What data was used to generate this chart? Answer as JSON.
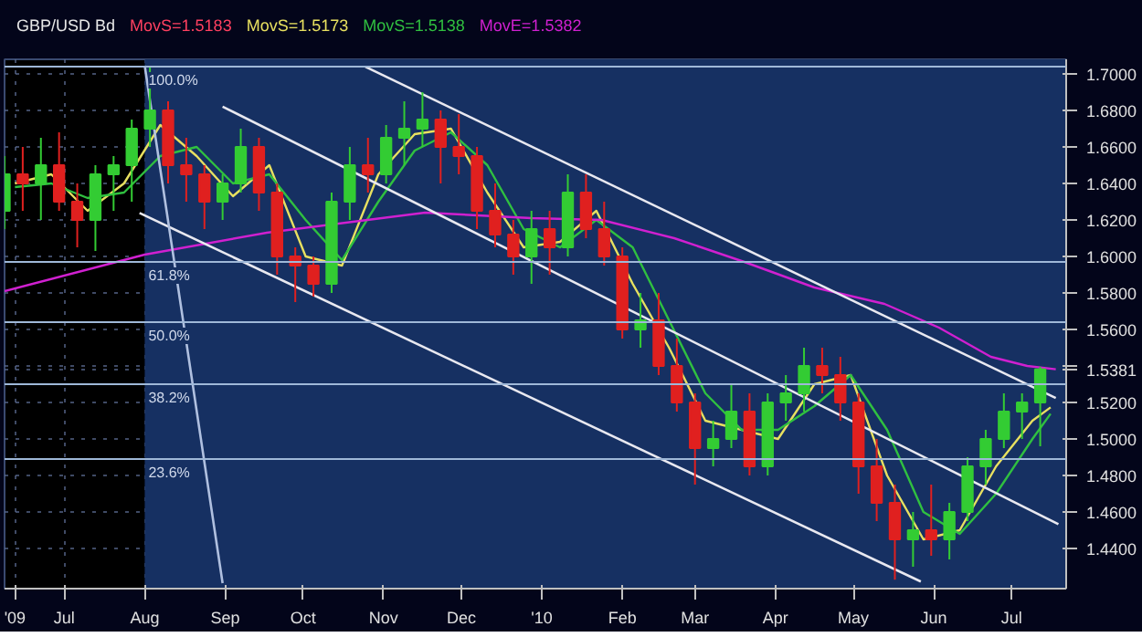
{
  "chart_data": {
    "type": "candlestick",
    "title": "GBP/USD Bd",
    "x": [
      "2009-06-08",
      "2009-06-15",
      "2009-06-22",
      "2009-06-29",
      "2009-07-06",
      "2009-07-13",
      "2009-07-20",
      "2009-07-27",
      "2009-08-03",
      "2009-08-10",
      "2009-08-17",
      "2009-08-24",
      "2009-08-31",
      "2009-09-07",
      "2009-09-14",
      "2009-09-21",
      "2009-09-28",
      "2009-10-05",
      "2009-10-12",
      "2009-10-19",
      "2009-10-26",
      "2009-11-02",
      "2009-11-09",
      "2009-11-16",
      "2009-11-23",
      "2009-11-30",
      "2009-12-07",
      "2009-12-14",
      "2009-12-21",
      "2009-12-28",
      "2010-01-04",
      "2010-01-11",
      "2010-01-18",
      "2010-01-25",
      "2010-02-01",
      "2010-02-08",
      "2010-02-15",
      "2010-02-22",
      "2010-03-01",
      "2010-03-08",
      "2010-03-15",
      "2010-03-22",
      "2010-03-29",
      "2010-04-05",
      "2010-04-12",
      "2010-04-19",
      "2010-04-26",
      "2010-05-03",
      "2010-05-10",
      "2010-05-17",
      "2010-05-24",
      "2010-05-31",
      "2010-06-07",
      "2010-06-14",
      "2010-06-21",
      "2010-06-28",
      "2010-07-05",
      "2010-07-12"
    ],
    "ohlc": [
      [
        1.625,
        1.655,
        1.615,
        1.645
      ],
      [
        1.645,
        1.66,
        1.625,
        1.64
      ],
      [
        1.64,
        1.665,
        1.62,
        1.65
      ],
      [
        1.65,
        1.668,
        1.625,
        1.63
      ],
      [
        1.63,
        1.64,
        1.605,
        1.62
      ],
      [
        1.62,
        1.65,
        1.603,
        1.645
      ],
      [
        1.645,
        1.655,
        1.625,
        1.65
      ],
      [
        1.65,
        1.675,
        1.63,
        1.67
      ],
      [
        1.67,
        1.7043,
        1.66,
        1.68
      ],
      [
        1.68,
        1.685,
        1.64,
        1.65
      ],
      [
        1.65,
        1.665,
        1.63,
        1.645
      ],
      [
        1.645,
        1.65,
        1.615,
        1.63
      ],
      [
        1.63,
        1.645,
        1.62,
        1.64
      ],
      [
        1.64,
        1.67,
        1.635,
        1.66
      ],
      [
        1.66,
        1.665,
        1.625,
        1.635
      ],
      [
        1.635,
        1.64,
        1.59,
        1.6
      ],
      [
        1.6,
        1.605,
        1.575,
        1.595
      ],
      [
        1.595,
        1.6,
        1.578,
        1.585
      ],
      [
        1.585,
        1.635,
        1.58,
        1.63
      ],
      [
        1.63,
        1.66,
        1.62,
        1.65
      ],
      [
        1.65,
        1.665,
        1.635,
        1.645
      ],
      [
        1.645,
        1.672,
        1.64,
        1.665
      ],
      [
        1.665,
        1.685,
        1.65,
        1.67
      ],
      [
        1.67,
        1.69,
        1.66,
        1.675
      ],
      [
        1.675,
        1.68,
        1.64,
        1.66
      ],
      [
        1.66,
        1.678,
        1.645,
        1.655
      ],
      [
        1.655,
        1.66,
        1.615,
        1.625
      ],
      [
        1.625,
        1.64,
        1.605,
        1.612
      ],
      [
        1.612,
        1.62,
        1.59,
        1.6
      ],
      [
        1.6,
        1.625,
        1.585,
        1.615
      ],
      [
        1.615,
        1.625,
        1.59,
        1.605
      ],
      [
        1.605,
        1.645,
        1.6,
        1.635
      ],
      [
        1.635,
        1.645,
        1.61,
        1.615
      ],
      [
        1.615,
        1.63,
        1.595,
        1.6
      ],
      [
        1.6,
        1.605,
        1.555,
        1.56
      ],
      [
        1.56,
        1.58,
        1.55,
        1.565
      ],
      [
        1.565,
        1.58,
        1.535,
        1.54
      ],
      [
        1.54,
        1.555,
        1.515,
        1.52
      ],
      [
        1.52,
        1.525,
        1.475,
        1.495
      ],
      [
        1.495,
        1.51,
        1.485,
        1.5
      ],
      [
        1.5,
        1.53,
        1.495,
        1.515
      ],
      [
        1.515,
        1.525,
        1.48,
        1.485
      ],
      [
        1.485,
        1.525,
        1.48,
        1.52
      ],
      [
        1.52,
        1.535,
        1.51,
        1.525
      ],
      [
        1.525,
        1.55,
        1.515,
        1.54
      ],
      [
        1.54,
        1.55,
        1.525,
        1.535
      ],
      [
        1.535,
        1.545,
        1.51,
        1.52
      ],
      [
        1.52,
        1.525,
        1.47,
        1.485
      ],
      [
        1.485,
        1.5,
        1.455,
        1.465
      ],
      [
        1.465,
        1.475,
        1.4229,
        1.445
      ],
      [
        1.445,
        1.46,
        1.43,
        1.45
      ],
      [
        1.45,
        1.475,
        1.436,
        1.445
      ],
      [
        1.445,
        1.465,
        1.434,
        1.46
      ],
      [
        1.46,
        1.49,
        1.455,
        1.485
      ],
      [
        1.485,
        1.505,
        1.475,
        1.5
      ],
      [
        1.5,
        1.525,
        1.495,
        1.515
      ],
      [
        1.515,
        1.525,
        1.5,
        1.52
      ],
      [
        1.52,
        1.5395,
        1.496,
        1.5381
      ]
    ],
    "colors": [
      "#33cc33",
      "#e0201f",
      "#33cc33",
      "#e0201f",
      "#e0201f",
      "#33cc33",
      "#33cc33",
      "#33cc33",
      "#33cc33",
      "#e0201f",
      "#e0201f",
      "#e0201f",
      "#33cc33",
      "#33cc33",
      "#e0201f",
      "#e0201f",
      "#e0201f",
      "#e0201f",
      "#33cc33",
      "#33cc33",
      "#e0201f",
      "#33cc33",
      "#33cc33",
      "#33cc33",
      "#e0201f",
      "#e0201f",
      "#e0201f",
      "#e0201f",
      "#e0201f",
      "#33cc33",
      "#e0201f",
      "#33cc33",
      "#e0201f",
      "#e0201f",
      "#e0201f",
      "#33cc33",
      "#e0201f",
      "#e0201f",
      "#e0201f",
      "#33cc33",
      "#33cc33",
      "#e0201f",
      "#33cc33",
      "#33cc33",
      "#33cc33",
      "#e0201f",
      "#e0201f",
      "#e0201f",
      "#e0201f",
      "#e0201f",
      "#33cc33",
      "#e0201f",
      "#33cc33",
      "#33cc33",
      "#33cc33",
      "#33cc33",
      "#33cc33",
      "#33cc33"
    ],
    "series": [
      {
        "type": "line",
        "name": "MovS=1.5173",
        "color": "#e8e060",
        "x": [
          "2009-06-12",
          "2009-06-26",
          "2009-07-10",
          "2009-07-24",
          "2009-08-07",
          "2009-08-21",
          "2009-09-04",
          "2009-09-18",
          "2009-10-02",
          "2009-10-16",
          "2009-10-30",
          "2009-11-13",
          "2009-11-27",
          "2009-12-11",
          "2009-12-25",
          "2010-01-08",
          "2010-01-22",
          "2010-02-05",
          "2010-02-19",
          "2010-03-05",
          "2010-03-19",
          "2010-04-02",
          "2010-04-16",
          "2010-04-30",
          "2010-05-14",
          "2010-05-28",
          "2010-06-11",
          "2010-06-25",
          "2010-07-09",
          "2010-07-16"
        ],
        "values": [
          1.64,
          1.645,
          1.625,
          1.64,
          1.672,
          1.655,
          1.633,
          1.65,
          1.6,
          1.595,
          1.645,
          1.667,
          1.67,
          1.635,
          1.605,
          1.608,
          1.625,
          1.585,
          1.55,
          1.51,
          1.505,
          1.5,
          1.53,
          1.535,
          1.48,
          1.445,
          1.45,
          1.485,
          1.51,
          1.5173
        ]
      },
      {
        "type": "line",
        "name": "MovS=1.5138",
        "color": "#30c040",
        "x": [
          "2009-06-12",
          "2009-06-26",
          "2009-07-10",
          "2009-07-24",
          "2009-08-07",
          "2009-08-21",
          "2009-09-04",
          "2009-09-18",
          "2009-10-02",
          "2009-10-16",
          "2009-10-30",
          "2009-11-13",
          "2009-11-27",
          "2009-12-11",
          "2009-12-25",
          "2010-01-08",
          "2010-01-22",
          "2010-02-05",
          "2010-02-19",
          "2010-03-05",
          "2010-03-19",
          "2010-04-02",
          "2010-04-16",
          "2010-04-30",
          "2010-05-14",
          "2010-05-28",
          "2010-06-11",
          "2010-06-25",
          "2010-07-09",
          "2010-07-16"
        ],
        "values": [
          1.638,
          1.64,
          1.632,
          1.635,
          1.655,
          1.66,
          1.64,
          1.645,
          1.62,
          1.598,
          1.63,
          1.658,
          1.668,
          1.65,
          1.615,
          1.605,
          1.62,
          1.605,
          1.565,
          1.525,
          1.505,
          1.505,
          1.518,
          1.535,
          1.505,
          1.46,
          1.448,
          1.47,
          1.5,
          1.5138
        ]
      },
      {
        "type": "line",
        "name": "MovE=1.5382",
        "color": "#d020d0",
        "x": [
          "2009-06-08",
          "2009-08-01",
          "2009-09-17",
          "2009-11-17",
          "2009-12-28",
          "2010-01-24",
          "2010-02-21",
          "2010-03-20",
          "2010-04-16",
          "2010-05-13",
          "2010-06-03",
          "2010-06-23",
          "2010-07-07",
          "2010-07-18"
        ],
        "values": [
          1.581,
          1.601,
          1.613,
          1.624,
          1.621,
          1.62,
          1.61,
          1.597,
          1.583,
          1.574,
          1.561,
          1.545,
          1.54,
          1.5382
        ]
      },
      {
        "type": "line",
        "color": "#e8e8f0",
        "x": [
          "2009-10-25",
          "2010-07-18"
        ],
        "values": [
          1.7039,
          1.5224
        ]
      },
      {
        "type": "line",
        "color": "#e8e8f0",
        "x": [
          "2009-08-31",
          "2010-07-19"
        ],
        "values": [
          1.6821,
          1.4533
        ]
      },
      {
        "type": "line",
        "color": "#e8e8f0",
        "x": [
          "2009-07-30",
          "2010-05-27"
        ],
        "values": [
          1.6238,
          1.4219
        ]
      },
      {
        "type": "line",
        "color": "#b0c0e0",
        "x": [
          "2009-08-01",
          "2009-08-31"
        ],
        "values": [
          1.7045,
          1.421
        ]
      }
    ],
    "ref_lines": [
      {
        "axis": "y",
        "value": 1.704,
        "color": "#9fb8d8"
      },
      {
        "axis": "y",
        "value": 1.597,
        "color": "#9fb8d8"
      },
      {
        "axis": "y",
        "value": 1.564,
        "color": "#9fb8d8"
      },
      {
        "axis": "y",
        "value": 1.53,
        "color": "#9fb8d8"
      },
      {
        "axis": "y",
        "value": 1.489,
        "color": "#9fb8d8"
      }
    ],
    "bands": [
      {
        "axis": "x",
        "from": "2009-08-01",
        "to": "2010-07-22",
        "color": "#163062"
      }
    ],
    "annotations": [
      "MovS=1.5183",
      {
        "text": "100.0%",
        "x": "2009-08-01",
        "y": 1.704
      },
      {
        "text": "61.8%",
        "x": "2009-08-01",
        "y": 1.597
      },
      {
        "text": "50.0%",
        "x": "2009-08-01",
        "y": 1.564
      },
      {
        "text": "38.2%",
        "x": "2009-08-01",
        "y": 1.53
      },
      {
        "text": "23.6%",
        "x": "2009-08-01",
        "y": 1.489
      }
    ],
    "xlim": [
      "2009-06-08",
      "2010-07-22"
    ],
    "xticks": [
      {
        "value": "2009-06-12",
        "label": "'09"
      },
      {
        "value": "2009-07-01",
        "label": "Jul"
      },
      {
        "value": "2009-08-01",
        "label": "Aug"
      },
      {
        "value": "2009-09-01",
        "label": "Sep"
      },
      {
        "value": "2009-10-01",
        "label": "Oct"
      },
      {
        "value": "2009-11-01",
        "label": "Nov"
      },
      {
        "value": "2009-12-01",
        "label": "Dec"
      },
      {
        "value": "2010-01-01",
        "label": "'10"
      },
      {
        "value": "2010-02-01",
        "label": "Feb"
      },
      {
        "value": "2010-03-01",
        "label": "Mar"
      },
      {
        "value": "2010-04-01",
        "label": "Apr"
      },
      {
        "value": "2010-05-01",
        "label": "May"
      },
      {
        "value": "2010-06-01",
        "label": "Jun"
      },
      {
        "value": "2010-07-01",
        "label": "Jul"
      }
    ],
    "ylim": [
      1.418,
      1.708
    ],
    "yticks": [
      {
        "value": 1.44,
        "label": "1.4400"
      },
      {
        "value": 1.46,
        "label": "1.4600"
      },
      {
        "value": 1.48,
        "label": "1.4800"
      },
      {
        "value": 1.5,
        "label": "1.5000"
      },
      {
        "value": 1.52,
        "label": "1.5200"
      },
      {
        "value": 1.5381,
        "label": "1.5381"
      },
      {
        "value": 1.54,
        "label": null
      },
      {
        "value": 1.56,
        "label": "1.5600"
      },
      {
        "value": 1.58,
        "label": "1.5800"
      },
      {
        "value": 1.6,
        "label": "1.6000"
      },
      {
        "value": 1.62,
        "label": "1.6200"
      },
      {
        "value": 1.64,
        "label": "1.6400"
      },
      {
        "value": 1.66,
        "label": "1.6600"
      },
      {
        "value": 1.68,
        "label": "1.6800"
      },
      {
        "value": 1.7,
        "label": "1.7000"
      }
    ],
    "grid": true
  }
}
